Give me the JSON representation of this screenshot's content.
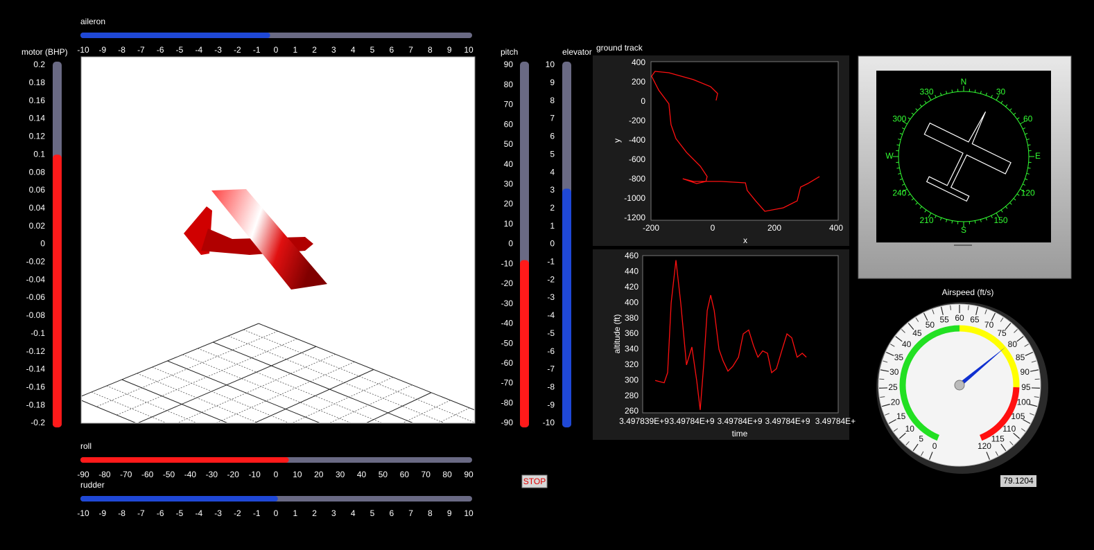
{
  "aileron": {
    "label": "aileron",
    "value": -0.3,
    "color": "#1f48d6",
    "lim": [
      -10,
      10
    ],
    "ticks": [
      -10,
      -9,
      -8,
      -7,
      -6,
      -5,
      -4,
      -3,
      -2,
      -1,
      0,
      1,
      2,
      3,
      4,
      5,
      6,
      7,
      8,
      9,
      10
    ]
  },
  "motor": {
    "label": "motor (BHP)",
    "value": 0.1,
    "color": "#ff1a1a",
    "lim": [
      -0.2,
      0.2
    ],
    "ticks": [
      0.2,
      0.18,
      0.16,
      0.14,
      0.12,
      0.1,
      0.08,
      0.06,
      0.04,
      0.02,
      0,
      -0.02,
      -0.04,
      -0.06,
      -0.08,
      -0.1,
      -0.12,
      -0.14,
      -0.16,
      -0.18,
      -0.2
    ]
  },
  "pitch": {
    "label": "pitch",
    "value": -8,
    "color": "#ff1a1a",
    "lim": [
      -90,
      90
    ],
    "ticks": [
      90,
      80,
      70,
      60,
      50,
      40,
      30,
      20,
      10,
      0,
      -10,
      -20,
      -30,
      -40,
      -50,
      -60,
      -70,
      -80,
      -90
    ]
  },
  "elevator": {
    "label": "elevator",
    "value": 3.1,
    "color": "#1f48d6",
    "lim": [
      -10,
      10
    ],
    "ticks": [
      10,
      9,
      8,
      7,
      6,
      5,
      4,
      3,
      2,
      1,
      0,
      -1,
      -2,
      -3,
      -4,
      -5,
      -6,
      -7,
      -8,
      -9,
      -10
    ]
  },
  "roll": {
    "label": "roll",
    "value": 6,
    "color": "#ff1a1a",
    "lim": [
      -90,
      90
    ],
    "ticks": [
      -90,
      -80,
      -70,
      -60,
      -50,
      -40,
      -30,
      -20,
      -10,
      0,
      10,
      20,
      30,
      40,
      50,
      60,
      70,
      80,
      90
    ]
  },
  "rudder": {
    "label": "rudder",
    "value": 0.1,
    "color": "#1f48d6",
    "lim": [
      -10,
      10
    ],
    "ticks": [
      -10,
      -9,
      -8,
      -7,
      -6,
      -5,
      -4,
      -3,
      -2,
      -1,
      0,
      1,
      2,
      3,
      4,
      5,
      6,
      7,
      8,
      9,
      10
    ]
  },
  "stop_button": "STOP",
  "ground_track": {
    "type": "line",
    "title": "ground track",
    "x_label": "x",
    "y_label": "y",
    "x": [
      11,
      16,
      -7,
      -63,
      -142,
      -187,
      -198,
      -175,
      -142,
      -135,
      -119,
      -85,
      -40,
      -18,
      -22,
      -52,
      -97,
      -63,
      27,
      106,
      112,
      139,
      169,
      229,
      274,
      285,
      308,
      346
    ],
    "series": [
      {
        "color": "#ff1010",
        "values": [
          14,
          86,
          157,
          229,
          300,
          314,
          264,
          121,
          -21,
          -236,
          -379,
          -521,
          -664,
          -771,
          -821,
          -843,
          -793,
          -821,
          -821,
          -836,
          -914,
          -1021,
          -1129,
          -1093,
          -1021,
          -879,
          -843,
          -771
        ]
      }
    ],
    "xlim": [
      -200,
      400
    ],
    "ylim": [
      -1200,
      400
    ],
    "xticks": [
      -200,
      0,
      200,
      400
    ],
    "yticks": [
      400,
      200,
      0,
      -200,
      -400,
      -600,
      -800,
      -1000,
      -1200
    ]
  },
  "altitude": {
    "type": "line",
    "x_label": "time",
    "y_label": "altitude (ft)",
    "x": [
      3497839435,
      3497839463,
      3497839474,
      3497839485,
      3497839500,
      3497839515,
      3497839533,
      3497839550,
      3497839565,
      3497839576,
      3497839587,
      3497839598,
      3497839609,
      3497839620,
      3497839635,
      3497839648,
      3497839663,
      3497839678,
      3497839696,
      3497839711,
      3497839728,
      3497839743,
      3497839757,
      3497839772,
      3497839787,
      3497839800,
      3497839815,
      3497839833,
      3497839848,
      3497839863,
      3497839880,
      3497839896,
      3497839909
    ],
    "series": [
      {
        "color": "#ff1010",
        "values": [
          300,
          297,
          310,
          400,
          455,
          400,
          320,
          343,
          300,
          262,
          320,
          390,
          410,
          390,
          340,
          325,
          312,
          318,
          330,
          360,
          365,
          345,
          330,
          338,
          335,
          310,
          315,
          340,
          360,
          355,
          330,
          335,
          330
        ]
      }
    ],
    "xlim": [
      3497839400,
      3497840000
    ],
    "ylim": [
      260,
      460
    ],
    "xticks": [
      {
        "value": 3497839400,
        "label": "3.497839E+9"
      },
      {
        "value": 3497839550,
        "label": "3.49784E+9"
      },
      {
        "value": 3497839700,
        "label": "3.49784E+9"
      },
      {
        "value": 3497839850,
        "label": "3.49784E+9"
      },
      {
        "value": 3497840000,
        "label": "3.49784E+"
      }
    ],
    "yticks": [
      460,
      440,
      420,
      400,
      380,
      360,
      340,
      320,
      300,
      280,
      260
    ]
  },
  "compass": {
    "heading": 26,
    "labels": [
      "N",
      "30",
      "60",
      "E",
      "120",
      "150",
      "S",
      "210",
      "240",
      "W",
      "300",
      "330"
    ],
    "color": "#33ff33"
  },
  "airspeed": {
    "title": "Airspeed (ft/s)",
    "value": 79.1204,
    "lim": [
      0,
      120
    ],
    "ticks": [
      0,
      5,
      10,
      15,
      20,
      25,
      30,
      35,
      40,
      45,
      50,
      55,
      60,
      65,
      70,
      75,
      80,
      85,
      90,
      95,
      100,
      105,
      110,
      115,
      120
    ],
    "zones": [
      {
        "from": 0,
        "to": 60,
        "color": "#22e022"
      },
      {
        "from": 60,
        "to": 95,
        "color": "#ffff00"
      },
      {
        "from": 95,
        "to": 120,
        "color": "#ff1010"
      }
    ]
  }
}
